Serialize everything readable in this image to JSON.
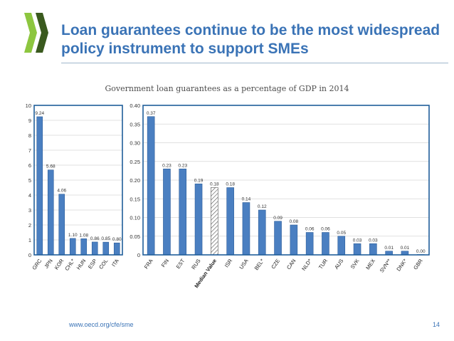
{
  "slide": {
    "title": "Loan guarantees continue to be the most widespread policy instrument to support SMEs",
    "chart_title": "Government loan guarantees as a percentage of GDP in 2014",
    "footer_url": "www.oecd.org/cfe/sme",
    "page_number": "14"
  },
  "colors": {
    "title": "#3a73b6",
    "bar": "#4a7fc1",
    "panel_border": "#1f5e9a",
    "logo_green": "#8dc63f",
    "logo_dark": "#3a5a1e"
  },
  "chart_data": [
    {
      "type": "bar",
      "categories": [
        "GRC",
        "JPN",
        "KOR",
        "CHL*",
        "HUN",
        "ESP",
        "COL",
        "ITA"
      ],
      "values": [
        9.24,
        5.68,
        4.06,
        1.1,
        1.08,
        0.86,
        0.85,
        0.8
      ],
      "value_labels": [
        "9.24",
        "5.68",
        "4.06",
        "1.10",
        "1.08",
        "0.86",
        "0.85",
        "0.80"
      ],
      "ylim": [
        0,
        10
      ],
      "yticks": [
        "0",
        "1",
        "2",
        "3",
        "4",
        "5",
        "6",
        "7",
        "8",
        "9",
        "10"
      ],
      "grid": true
    },
    {
      "type": "bar",
      "categories": [
        "FRA",
        "FIN",
        "EST",
        "RUS",
        "Median Value",
        "ISR",
        "USA",
        "BEL*",
        "CZE",
        "CAN",
        "NLD*",
        "TUR",
        "AUS",
        "SVK",
        "MEX",
        "SVN**",
        "DNK*",
        "GBR"
      ],
      "values": [
        0.37,
        0.23,
        0.23,
        0.19,
        0.18,
        0.18,
        0.14,
        0.12,
        0.09,
        0.08,
        0.06,
        0.06,
        0.05,
        0.03,
        0.03,
        0.01,
        0.01,
        0.0
      ],
      "value_labels": [
        "0.37",
        "0.23",
        "0.23",
        "0.19",
        "0.18",
        "0.18",
        "0.14",
        "0.12",
        "0.09",
        "0.08",
        "0.06",
        "0.06",
        "0.05",
        "0.03",
        "0.03",
        "0.01",
        "0.01",
        "0.00"
      ],
      "highlight": "Median Value",
      "ylim": [
        0,
        0.4
      ],
      "yticks": [
        "0",
        "0.05",
        "0.10",
        "0.15",
        "0.20",
        "0.25",
        "0.30",
        "0.35",
        "0.40"
      ],
      "grid": true
    }
  ]
}
